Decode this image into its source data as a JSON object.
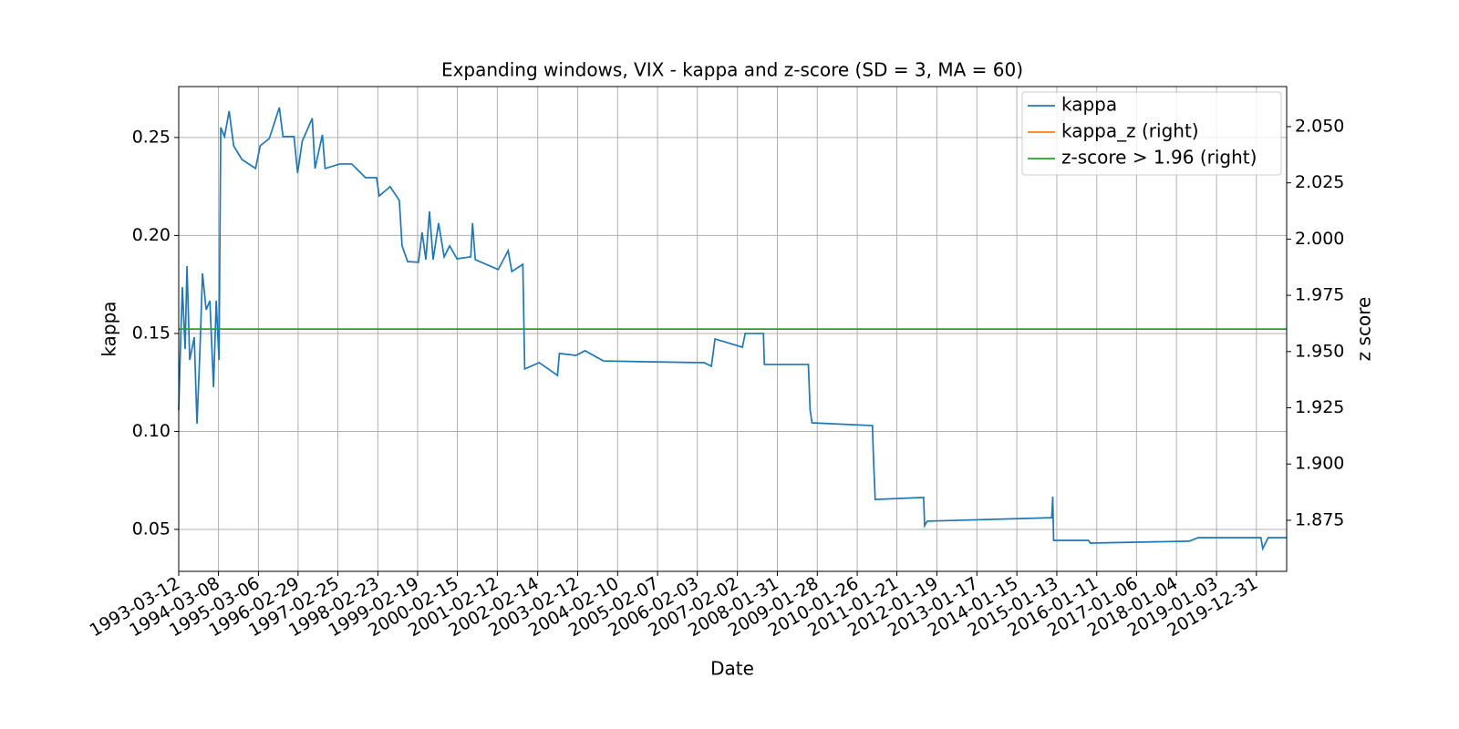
{
  "chart_data": {
    "type": "line",
    "title": "Expanding windows, VIX - kappa and z-score (SD = 3, MA = 60)",
    "xlabel": "Date",
    "ylabel": "kappa",
    "y2label": "z score",
    "grid": true,
    "legend": "upper right",
    "xlim": [
      "1993-03-12",
      "2020-10-01"
    ],
    "xticks": [
      "1993-03-12",
      "1994-03-08",
      "1995-03-06",
      "1996-02-29",
      "1997-02-25",
      "1998-02-23",
      "1999-02-19",
      "2000-02-15",
      "2001-02-12",
      "2002-02-14",
      "2003-02-12",
      "2004-02-10",
      "2005-02-07",
      "2006-02-03",
      "2007-02-02",
      "2008-01-31",
      "2009-01-28",
      "2010-01-26",
      "2011-01-21",
      "2012-01-19",
      "2013-01-17",
      "2014-01-15",
      "2015-01-13",
      "2016-01-11",
      "2017-01-06",
      "2018-01-04",
      "2019-01-03",
      "2019-12-31"
    ],
    "ylim": [
      0.0286,
      0.276
    ],
    "yticks": [
      0.05,
      {
        "value": 0.1,
        "label": "0.10"
      },
      0.15,
      {
        "value": 0.2,
        "label": "0.20"
      },
      0.25
    ],
    "y2lim": [
      1.8523,
      2.0678
    ],
    "y2ticks": [
      1.875,
      {
        "value": 1.9,
        "label": "1.900"
      },
      1.925,
      {
        "value": 1.95,
        "label": "1.950"
      },
      1.975,
      {
        "value": 2.0,
        "label": "2.000"
      },
      2.025,
      {
        "value": 2.05,
        "label": "2.050"
      }
    ],
    "x": [
      "1993-03-12",
      "1993-03-28",
      "1993-04-14",
      "1993-05-09",
      "1993-05-26",
      "1993-06-20",
      "1993-07-31",
      "1993-08-25",
      "1993-09-19",
      "1993-10-14",
      "1993-11-16",
      "1993-12-20",
      "1994-01-22",
      "1994-02-16",
      "1994-03-13",
      "1994-03-29",
      "1994-05-02",
      "1994-06-13",
      "1994-07-24",
      "1994-10-07",
      "1995-02-08",
      "1995-03-22",
      "1995-06-13",
      "1995-09-12",
      "1995-10-15",
      "1996-01-23",
      "1996-02-25",
      "1996-04-07",
      "1996-07-07",
      "1996-08-01",
      "1996-10-07",
      "1996-11-01",
      "1997-03-15",
      "1997-07-01",
      "1997-11-03",
      "1998-02-11",
      "1998-03-07",
      "1998-06-15",
      "1998-09-06",
      "1998-10-01",
      "1998-11-20",
      "1999-02-27",
      "1999-04-01",
      "1999-05-05",
      "1999-06-07",
      "1999-07-10",
      "1999-08-29",
      "1999-10-18",
      "1999-12-07",
      "2000-02-12",
      "2000-06-16",
      "2000-07-02",
      "2000-07-27",
      "2001-02-20",
      "2001-05-22",
      "2001-06-24",
      "2001-10-02",
      "2001-10-19",
      "2002-02-28",
      "2002-08-13",
      "2002-08-30",
      "2003-01-27",
      "2003-04-20",
      "2003-10-03",
      "2004-09-01",
      "2006-04-06",
      "2006-06-11",
      "2006-07-14",
      "2007-03-20",
      "2007-04-14",
      "2007-09-27",
      "2007-10-05",
      "2008-11-08",
      "2008-11-24",
      "2008-12-11",
      "2010-06-13",
      "2010-06-21",
      "2010-07-08",
      "2011-09-21",
      "2011-09-30",
      "2011-10-24",
      "2014-11-28",
      "2014-12-07",
      "2014-12-15",
      "2015-10-27",
      "2015-11-13",
      "2018-04-29",
      "2018-07-21",
      "2020-02-10",
      "2020-02-27",
      "2020-04-16",
      "2020-10-01"
    ],
    "series": [
      {
        "name": "kappa",
        "color": "#1f77b4",
        "axis": "y",
        "values": [
          0.1109,
          0.1435,
          0.1737,
          0.1421,
          0.1844,
          0.1365,
          0.1481,
          0.104,
          0.1388,
          0.1807,
          0.1621,
          0.1667,
          0.1226,
          0.1667,
          0.1365,
          0.2551,
          0.2505,
          0.2635,
          0.2458,
          0.2388,
          0.2342,
          0.2458,
          0.2495,
          0.2653,
          0.2505,
          0.2505,
          0.2319,
          0.2481,
          0.2598,
          0.2342,
          0.2514,
          0.2342,
          0.2365,
          0.2365,
          0.2295,
          0.2295,
          0.2202,
          0.2249,
          0.2179,
          0.1947,
          0.1867,
          0.1863,
          0.2016,
          0.1877,
          0.2123,
          0.1877,
          0.2063,
          0.1891,
          0.1947,
          0.1881,
          0.1891,
          0.2063,
          0.1877,
          0.1826,
          0.1923,
          0.1816,
          0.1853,
          0.1319,
          0.1351,
          0.1286,
          0.1398,
          0.1388,
          0.1412,
          0.136,
          0.1356,
          0.1351,
          0.1333,
          0.1472,
          0.143,
          0.15,
          0.15,
          0.1342,
          0.1342,
          0.1109,
          0.1044,
          0.103,
          0.0886,
          0.0653,
          0.0663,
          0.0519,
          0.0542,
          0.056,
          0.0667,
          0.0444,
          0.0444,
          0.043,
          0.044,
          0.0458,
          0.0458,
          0.0402,
          0.0458,
          0.0458
        ]
      },
      {
        "name": "kappa_z (right)",
        "color": "#ff7f0e",
        "axis": "y2"
      },
      {
        "name": "z-score > 1.96 (right)",
        "color": "#2ca02c",
        "axis": "y2",
        "x": [
          "1993-03-12",
          "2020-10-01"
        ],
        "values": [
          1.96,
          1.96
        ]
      }
    ]
  }
}
